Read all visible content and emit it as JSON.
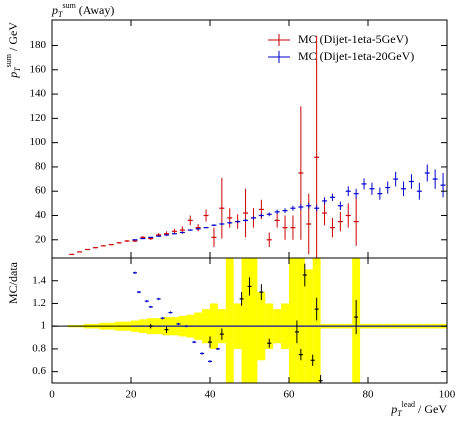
{
  "chart_data": [
    {
      "type": "errorbar",
      "title": {
        "base": "p",
        "sub": "T",
        "sup": "sum",
        "text": " (Away)"
      },
      "ylabel": {
        "base": "p",
        "sub": "T",
        "sup": "sum",
        "text": " / GeV"
      },
      "xlim": [
        0,
        100
      ],
      "ylim": [
        5,
        201
      ],
      "yticks": [
        20,
        40,
        60,
        80,
        100,
        120,
        140,
        160,
        180
      ],
      "legend": "upper right",
      "series": [
        {
          "name": "MC (Dijet-1eta-5GeV)",
          "color": "#cc0000",
          "x": [
            5,
            7,
            9,
            11,
            13,
            15,
            17,
            19,
            21,
            23,
            25,
            27,
            29,
            31,
            33,
            35,
            37,
            39,
            41,
            43,
            45,
            47,
            49,
            51,
            53,
            55,
            57,
            59,
            61,
            63,
            65,
            67,
            69,
            71,
            73,
            75,
            77
          ],
          "values": [
            8,
            10,
            12,
            13.5,
            15,
            16,
            17.5,
            19,
            19,
            22,
            21,
            24,
            25,
            27,
            28,
            36,
            30,
            40,
            22,
            46,
            38,
            35,
            42,
            38,
            45,
            20,
            36,
            30,
            30,
            75,
            33,
            88,
            42,
            30,
            35,
            40,
            35
          ],
          "errors": [
            0.3,
            0.3,
            0.4,
            0.4,
            0.5,
            0.5,
            0.6,
            0.7,
            0.8,
            1,
            1.2,
            1.5,
            2,
            2,
            3,
            4,
            3,
            5,
            8,
            25,
            8,
            6,
            20,
            8,
            8,
            6,
            6,
            10,
            10,
            55,
            25,
            100,
            10,
            8,
            8,
            10,
            20
          ]
        },
        {
          "name": "MC (Dijet-1eta-20GeV)",
          "color": "#0000cc",
          "x": [
            21,
            23,
            25,
            27,
            29,
            31,
            33,
            35,
            37,
            39,
            41,
            43,
            45,
            47,
            49,
            51,
            53,
            55,
            57,
            59,
            61,
            63,
            65,
            67,
            69,
            71,
            73,
            75,
            77,
            79,
            81,
            83,
            85,
            87,
            89,
            91,
            93,
            95,
            97,
            99
          ],
          "values": [
            20,
            21,
            22,
            23,
            24,
            25,
            26,
            28,
            29,
            30,
            32,
            33,
            34,
            35,
            36,
            38,
            40,
            41,
            43,
            44,
            46,
            47,
            48,
            46,
            52,
            55,
            48,
            60,
            58,
            66,
            62,
            58,
            63,
            70,
            62,
            68,
            60,
            75,
            70,
            65
          ],
          "errors": [
            0.3,
            0.3,
            0.3,
            0.4,
            0.4,
            0.5,
            0.5,
            0.6,
            0.6,
            0.7,
            0.8,
            0.9,
            1,
            1,
            1.2,
            1.3,
            1.5,
            1.6,
            1.8,
            2,
            2,
            2.2,
            2.5,
            2.5,
            3,
            3,
            3.5,
            4,
            4,
            4.5,
            5,
            5,
            5,
            6,
            6,
            6,
            7,
            7,
            8,
            10
          ]
        }
      ]
    },
    {
      "type": "ratio",
      "ylabel": "MC/data",
      "xlabel": {
        "base": "p",
        "sub": "T",
        "sup": "lead",
        "text": " / GeV"
      },
      "xlim": [
        0,
        100
      ],
      "xticks": [
        0,
        20,
        40,
        60,
        80,
        100
      ],
      "ylim": [
        0.5,
        1.6
      ],
      "yticks": [
        0.6,
        0.8,
        1,
        1.2,
        1.4
      ],
      "reference": 1,
      "band": {
        "color": "#ffff00",
        "x": [
          5,
          7,
          9,
          11,
          13,
          15,
          17,
          19,
          21,
          23,
          25,
          27,
          29,
          31,
          33,
          35,
          37,
          39,
          41,
          43,
          45,
          47,
          49,
          51,
          53,
          55,
          57,
          59,
          61,
          63,
          65,
          67,
          69,
          71,
          73,
          75,
          77,
          79,
          81,
          83,
          85,
          87,
          89,
          91,
          93,
          95,
          97,
          99
        ],
        "errors": [
          0.01,
          0.01,
          0.02,
          0.02,
          0.03,
          0.03,
          0.04,
          0.04,
          0.05,
          0.06,
          0.07,
          0.07,
          0.08,
          0.08,
          0.09,
          0.1,
          0.12,
          0.15,
          0.2,
          0.15,
          0.8,
          0.2,
          0.8,
          0.6,
          0.3,
          0.2,
          0.15,
          0.2,
          0.8,
          0.8,
          0.5,
          0.8,
          0.02,
          0.02,
          0.02,
          0.02,
          0.8,
          0.02,
          0.02,
          0.02,
          0.02,
          0.02,
          0.02,
          0.02,
          0.02,
          0.02,
          0.02,
          0.02
        ]
      },
      "series": [
        {
          "color": "#0000cc",
          "x": [
            21,
            22,
            24,
            25,
            27,
            28,
            30,
            32,
            34,
            36,
            38,
            40,
            42
          ],
          "values": [
            1.47,
            1.3,
            1.22,
            1.17,
            1.24,
            1.07,
            1.12,
            1.02,
            1.0,
            0.86,
            0.76,
            0.69,
            0.8
          ],
          "errors": [
            0.01,
            0.01,
            0.01,
            0.01,
            0.01,
            0.01,
            0.01,
            0.01,
            0.01,
            0.01,
            0.01,
            0.01,
            0.01
          ]
        },
        {
          "color": "#000000",
          "x": [
            25,
            29,
            40,
            43,
            48,
            50,
            53,
            55,
            62,
            63,
            64,
            66,
            67,
            68,
            77
          ],
          "values": [
            1.0,
            0.97,
            0.86,
            0.93,
            1.24,
            1.35,
            1.3,
            0.85,
            0.95,
            0.75,
            1.45,
            0.7,
            1.15,
            0.52,
            1.08
          ],
          "errors": [
            0.02,
            0.03,
            0.05,
            0.05,
            0.06,
            0.08,
            0.07,
            0.04,
            0.1,
            0.05,
            0.1,
            0.05,
            0.1,
            0.05,
            0.15
          ]
        }
      ]
    }
  ]
}
